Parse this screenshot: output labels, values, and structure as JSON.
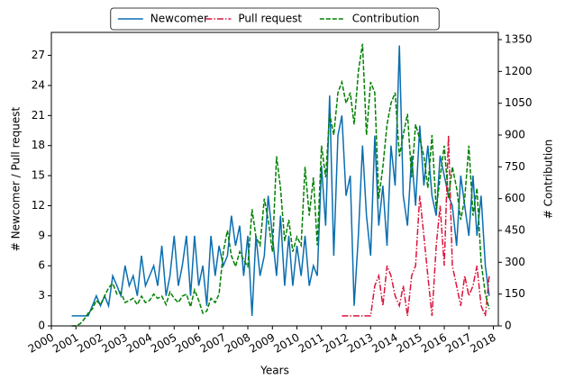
{
  "chart_data": {
    "type": "line",
    "xlabel": "Years",
    "ylabel": "# Newcomer / Pull request",
    "y2label": "# Contribution",
    "legend": "top",
    "x": [
      2000.83,
      2001,
      2001.17,
      2001.33,
      2001.5,
      2001.67,
      2001.83,
      2002,
      2002.17,
      2002.33,
      2002.5,
      2002.67,
      2002.83,
      2003,
      2003.17,
      2003.33,
      2003.5,
      2003.67,
      2003.83,
      2004,
      2004.17,
      2004.33,
      2004.5,
      2004.67,
      2004.83,
      2005,
      2005.17,
      2005.33,
      2005.5,
      2005.67,
      2005.83,
      2006,
      2006.17,
      2006.33,
      2006.5,
      2006.67,
      2006.83,
      2007,
      2007.17,
      2007.33,
      2007.5,
      2007.67,
      2007.83,
      2008,
      2008.17,
      2008.33,
      2008.5,
      2008.67,
      2008.83,
      2009,
      2009.17,
      2009.33,
      2009.5,
      2009.67,
      2009.83,
      2010,
      2010.17,
      2010.33,
      2010.5,
      2010.67,
      2010.83,
      2011,
      2011.17,
      2011.33,
      2011.5,
      2011.67,
      2011.83,
      2012,
      2012.17,
      2012.33,
      2012.5,
      2012.67,
      2012.83,
      2013,
      2013.17,
      2013.33,
      2013.5,
      2013.67,
      2013.83,
      2014,
      2014.17,
      2014.33,
      2014.5,
      2014.67,
      2014.83,
      2015,
      2015.17,
      2015.33,
      2015.5,
      2015.67,
      2015.83,
      2016,
      2016.17,
      2016.33,
      2016.5,
      2016.67,
      2016.83,
      2017,
      2017.17,
      2017.33,
      2017.5,
      2017.67,
      2017.83
    ],
    "series": [
      {
        "name": "Newcomer",
        "color": "#0a6eb0",
        "linestyle": "solid",
        "values": [
          1,
          1,
          1,
          1,
          1,
          2,
          3,
          2,
          3,
          2,
          5,
          4,
          3,
          6,
          4,
          5,
          3,
          7,
          4,
          5,
          6,
          4,
          8,
          3,
          5,
          9,
          4,
          6,
          9,
          3,
          9,
          4,
          6,
          2,
          9,
          5,
          8,
          6,
          7,
          11,
          8,
          10,
          5,
          9,
          1,
          9,
          5,
          7,
          13,
          9,
          5,
          11,
          4,
          9,
          4,
          8,
          5,
          9,
          4,
          6,
          5,
          16,
          10,
          23,
          7,
          19,
          21,
          13,
          15,
          2,
          9,
          18,
          11,
          7,
          19,
          10,
          14,
          8,
          18,
          14,
          28,
          13,
          10,
          17,
          12,
          20,
          14,
          18,
          13,
          11,
          17,
          15,
          13,
          12,
          8,
          15,
          12,
          9,
          15,
          9,
          13,
          6,
          3
        ]
      },
      {
        "name": "Pull request",
        "color": "#dc143c",
        "linestyle": "dashdot",
        "values": [
          null,
          null,
          null,
          null,
          null,
          null,
          null,
          null,
          null,
          null,
          null,
          null,
          null,
          null,
          null,
          null,
          null,
          null,
          null,
          null,
          null,
          null,
          null,
          null,
          null,
          null,
          null,
          null,
          null,
          null,
          null,
          null,
          null,
          null,
          null,
          null,
          null,
          null,
          null,
          null,
          null,
          null,
          null,
          null,
          null,
          null,
          null,
          null,
          null,
          null,
          null,
          null,
          null,
          null,
          null,
          null,
          null,
          null,
          null,
          null,
          null,
          null,
          null,
          null,
          null,
          null,
          1,
          1,
          1,
          1,
          1,
          1,
          1,
          1,
          4,
          5,
          2,
          6,
          5,
          3,
          2,
          4,
          1,
          5,
          6,
          13,
          9,
          5,
          1,
          8,
          12,
          6,
          19,
          6,
          4,
          2,
          5,
          3,
          4,
          6,
          2,
          1,
          5
        ]
      },
      {
        "name": "Contribution",
        "color": "#008000",
        "linestyle": "dashed",
        "axis": "y2",
        "values": [
          0,
          0,
          10,
          30,
          60,
          80,
          120,
          100,
          140,
          180,
          200,
          150,
          160,
          110,
          120,
          130,
          100,
          140,
          110,
          120,
          150,
          130,
          140,
          100,
          160,
          130,
          110,
          140,
          150,
          90,
          170,
          120,
          60,
          70,
          130,
          110,
          150,
          350,
          450,
          330,
          280,
          350,
          310,
          280,
          550,
          420,
          380,
          600,
          500,
          350,
          800,
          650,
          400,
          500,
          350,
          420,
          380,
          750,
          520,
          700,
          380,
          850,
          700,
          1000,
          900,
          1100,
          1150,
          1050,
          1100,
          950,
          1200,
          1330,
          900,
          1150,
          1100,
          600,
          750,
          950,
          1050,
          1100,
          800,
          900,
          1000,
          700,
          950,
          880,
          800,
          650,
          900,
          550,
          700,
          850,
          600,
          750,
          650,
          500,
          600,
          850,
          520,
          650,
          300,
          150,
          80
        ]
      }
    ],
    "xlim": [
      2000,
      2018.2
    ],
    "xticks": [
      2000,
      2001,
      2002,
      2003,
      2004,
      2005,
      2006,
      2007,
      2008,
      2009,
      2010,
      2011,
      2012,
      2013,
      2014,
      2015,
      2016,
      2017,
      2018
    ],
    "ylim": [
      0,
      29.3
    ],
    "yticks": [
      0,
      3,
      6,
      9,
      12,
      15,
      18,
      21,
      24,
      27
    ],
    "y2lim": [
      0,
      1384
    ],
    "y2ticks": [
      0,
      150,
      300,
      450,
      600,
      750,
      900,
      1050,
      1200,
      1350
    ]
  }
}
